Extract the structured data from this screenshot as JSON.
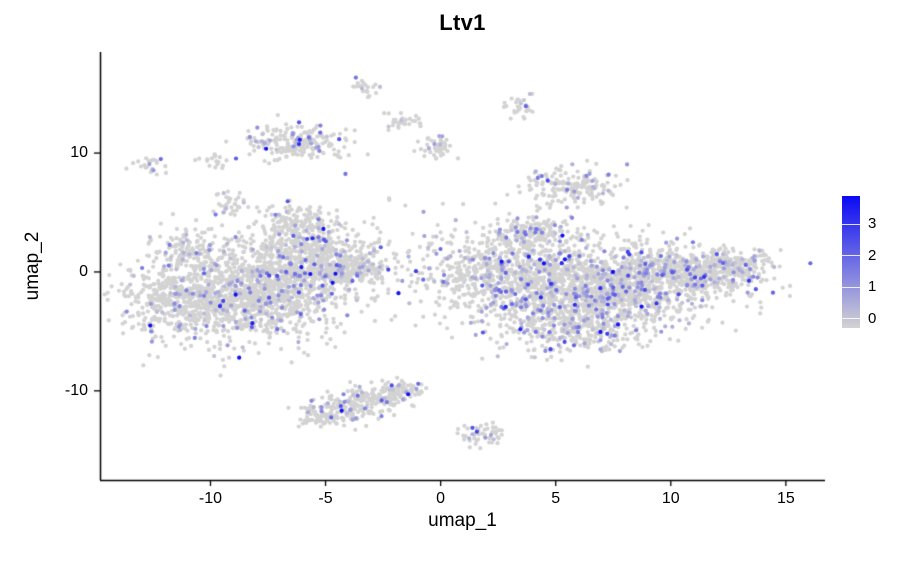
{
  "chart_data": {
    "type": "scatter",
    "title": "Ltv1",
    "xlabel": "umap_1",
    "ylabel": "umap_2",
    "xlim": [
      -14.8,
      16.7
    ],
    "ylim": [
      -17.5,
      18.5
    ],
    "x_ticks": [
      -10,
      -5,
      0,
      5,
      10,
      15
    ],
    "y_ticks": [
      -10,
      0,
      10
    ],
    "grid": false,
    "background": "#ffffff",
    "axis_color": "#000000",
    "point": {
      "radius": 2.1,
      "base_color": "#d3d3d3"
    },
    "legend": {
      "position": "right",
      "style": "colorbar",
      "limits": [
        -0.3,
        3.9
      ],
      "value_max": 3.6,
      "ticks": [
        0,
        1,
        2,
        3
      ],
      "tick_labels": [
        "0",
        "1",
        "2",
        "3"
      ],
      "low_color": "#d3d3d3",
      "high_color": "#0a0af5"
    },
    "expression": {
      "distribution": "exponential",
      "scale": 0.8,
      "offset": 0.25,
      "max": 3.5
    },
    "clusters": [
      {
        "name": "left-main-a",
        "x": -9.5,
        "y": -2.5,
        "sdx": 2.2,
        "sdy": 1.8,
        "n": 850,
        "frac": 0.1
      },
      {
        "name": "left-main-b",
        "x": -7.0,
        "y": -1.0,
        "sdx": 2.0,
        "sdy": 2.0,
        "n": 800,
        "frac": 0.1
      },
      {
        "name": "left-upper",
        "x": -5.5,
        "y": 2.0,
        "sdx": 1.4,
        "sdy": 1.4,
        "n": 330,
        "frac": 0.12
      },
      {
        "name": "left-arm",
        "x": -4.4,
        "y": 0.3,
        "sdx": 1.2,
        "sdy": 0.7,
        "n": 200,
        "frac": 0.1
      },
      {
        "name": "left-nw-lobe",
        "x": -11.0,
        "y": 1.5,
        "sdx": 0.8,
        "sdy": 1.1,
        "n": 140,
        "frac": 0.12
      },
      {
        "name": "left-top-bump",
        "x": -6.2,
        "y": 4.3,
        "sdx": 0.8,
        "sdy": 0.8,
        "n": 110,
        "frac": 0.1
      },
      {
        "name": "left-west-tip",
        "x": -11.8,
        "y": -2.2,
        "sdx": 0.8,
        "sdy": 1.0,
        "n": 130,
        "frac": 0.08
      },
      {
        "name": "left-arm-tip",
        "x": -3.5,
        "y": 0.2,
        "sdx": 0.5,
        "sdy": 0.35,
        "n": 60,
        "frac": 0.1
      },
      {
        "name": "right-main-a",
        "x": 2.5,
        "y": 0.0,
        "sdx": 1.8,
        "sdy": 1.9,
        "n": 600,
        "frac": 0.15
      },
      {
        "name": "right-main-b",
        "x": 5.5,
        "y": -1.8,
        "sdx": 2.2,
        "sdy": 2.0,
        "n": 850,
        "frac": 0.17
      },
      {
        "name": "right-main-c",
        "x": 8.5,
        "y": -1.0,
        "sdx": 2.0,
        "sdy": 1.7,
        "n": 700,
        "frac": 0.16
      },
      {
        "name": "right-east",
        "x": 11.0,
        "y": 0.0,
        "sdx": 1.6,
        "sdy": 1.1,
        "n": 380,
        "frac": 0.14
      },
      {
        "name": "right-east-tip",
        "x": 12.7,
        "y": 0.6,
        "sdx": 0.8,
        "sdy": 0.7,
        "n": 130,
        "frac": 0.12
      },
      {
        "name": "right-top-bump",
        "x": 4.1,
        "y": 3.4,
        "sdx": 0.9,
        "sdy": 0.7,
        "n": 150,
        "frac": 0.14
      },
      {
        "name": "right-bottom",
        "x": 6.2,
        "y": -5.0,
        "sdx": 1.4,
        "sdy": 0.9,
        "n": 200,
        "frac": 0.15
      },
      {
        "name": "top-left-island",
        "x": -6.2,
        "y": 10.8,
        "sdx": 1.0,
        "sdy": 0.75,
        "n": 200,
        "frac": 0.12
      },
      {
        "name": "tiny-nw-1",
        "x": -9.7,
        "y": 9.2,
        "sdx": 0.35,
        "sdy": 0.35,
        "n": 18,
        "frac": 0.1
      },
      {
        "name": "tiny-nw-2",
        "x": -9.1,
        "y": 5.6,
        "sdx": 0.4,
        "sdy": 0.5,
        "n": 35,
        "frac": 0.1
      },
      {
        "name": "tiny-far-west",
        "x": -12.6,
        "y": 9.0,
        "sdx": 0.38,
        "sdy": 0.45,
        "n": 22,
        "frac": 0.1
      },
      {
        "name": "tiny-top-1",
        "x": -3.3,
        "y": 15.6,
        "sdx": 0.3,
        "sdy": 0.4,
        "n": 20,
        "frac": 0.1
      },
      {
        "name": "tiny-top-2",
        "x": -1.6,
        "y": 12.5,
        "sdx": 0.35,
        "sdy": 0.4,
        "n": 30,
        "frac": 0.1
      },
      {
        "name": "tiny-top-3",
        "x": -0.1,
        "y": 10.5,
        "sdx": 0.4,
        "sdy": 0.5,
        "n": 50,
        "frac": 0.12
      },
      {
        "name": "tiny-top-4",
        "x": 3.4,
        "y": 13.9,
        "sdx": 0.35,
        "sdy": 0.55,
        "n": 30,
        "frac": 0.1
      },
      {
        "name": "ne-island",
        "x": 5.7,
        "y": 7.2,
        "sdx": 0.95,
        "sdy": 0.8,
        "n": 170,
        "frac": 0.13
      },
      {
        "name": "bottom-island-a",
        "x": -4.4,
        "y": -11.7,
        "sdx": 0.8,
        "sdy": 0.6,
        "n": 140,
        "frac": 0.12
      },
      {
        "name": "bottom-island-b",
        "x": -2.9,
        "y": -10.7,
        "sdx": 0.7,
        "sdy": 0.55,
        "n": 130,
        "frac": 0.12
      },
      {
        "name": "bottom-island-c",
        "x": -1.6,
        "y": -9.9,
        "sdx": 0.5,
        "sdy": 0.4,
        "n": 60,
        "frac": 0.12
      },
      {
        "name": "bottom-island-tip",
        "x": -5.3,
        "y": -12.3,
        "sdx": 0.35,
        "sdy": 0.35,
        "n": 30,
        "frac": 0.1
      },
      {
        "name": "bottom-small",
        "x": 1.8,
        "y": -13.7,
        "sdx": 0.45,
        "sdy": 0.5,
        "n": 55,
        "frac": 0.1
      },
      {
        "name": "sparse-middle",
        "x": -0.8,
        "y": 4.5,
        "sdx": 2.2,
        "sdy": 1.8,
        "n": 14,
        "frac": 0.15
      }
    ]
  }
}
